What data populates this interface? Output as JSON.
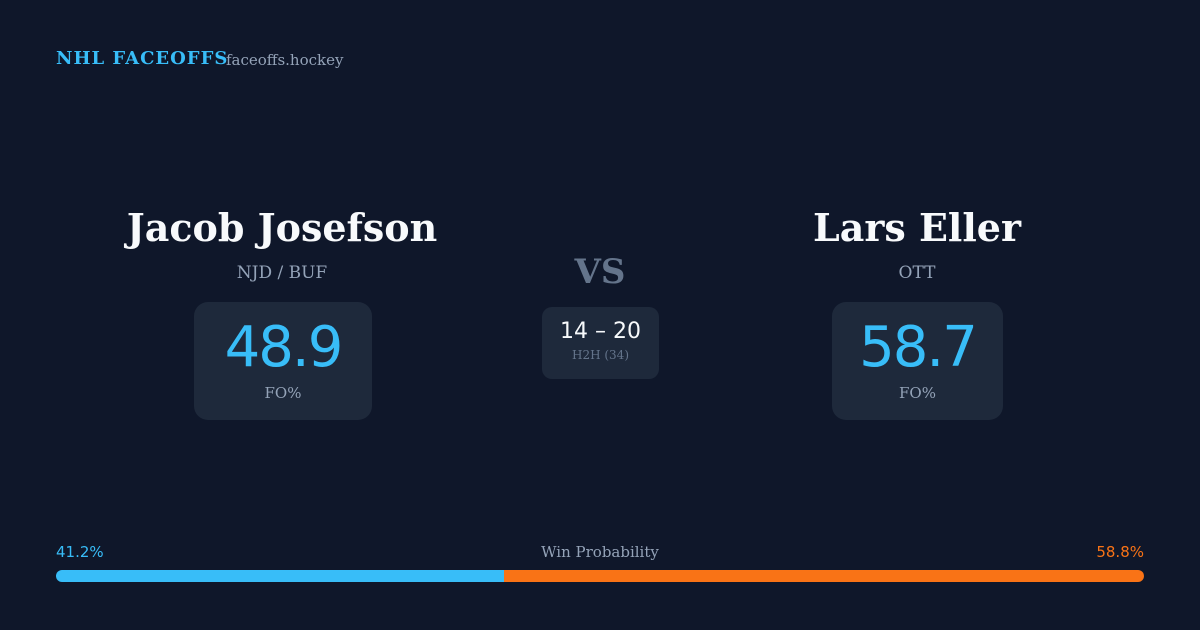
{
  "header": {
    "brand": "NHL FACEOFFS",
    "site": "faceoffs.hockey"
  },
  "players": [
    {
      "name": "Jacob Josefson",
      "teams": "NJD / BUF",
      "fo_pct": "48.9",
      "fo_label": "FO%"
    },
    {
      "name": "Lars Eller",
      "teams": "OTT",
      "fo_pct": "58.7",
      "fo_label": "FO%"
    }
  ],
  "versus": "VS",
  "h2h": {
    "score": "14 – 20",
    "label": "H2H (34)"
  },
  "win_probability": {
    "label": "Win Probability",
    "values": [
      41.2,
      58.8
    ],
    "value_labels": [
      "41.2%",
      "58.8%"
    ],
    "colors": [
      "#38bdf8",
      "#f97316"
    ]
  }
}
